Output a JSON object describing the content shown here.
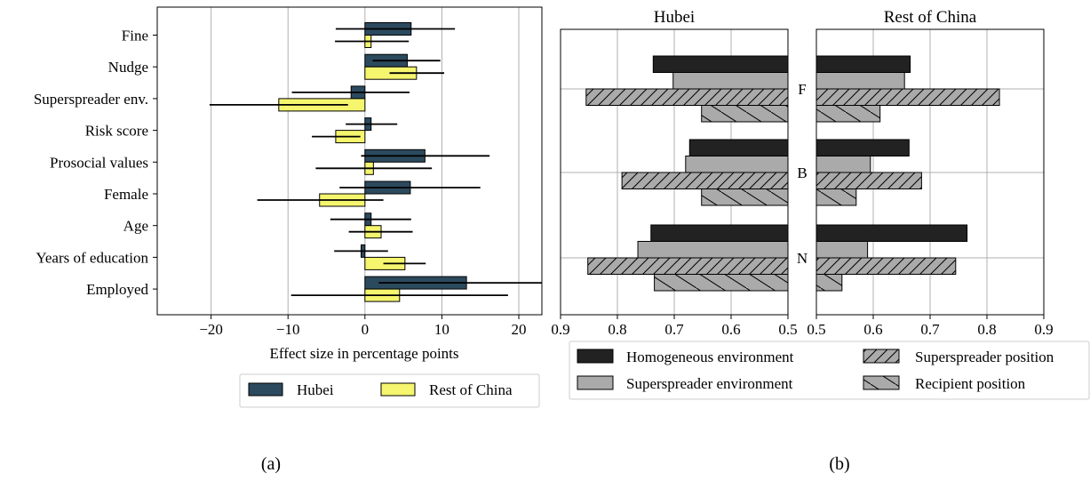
{
  "colors": {
    "hubei": "#2c4a5e",
    "rest": "#f5f56e",
    "homogeneous": "#222222",
    "spreader_env": "#aaaaaa",
    "position": "#aaaaaa",
    "grid": "#b0b0b0"
  },
  "panel_a": {
    "caption": "(a)",
    "legend": {
      "hubei": "Hubei",
      "rest": "Rest of China"
    }
  },
  "panel_b": {
    "caption": "(b)",
    "legend": {
      "homogeneous": "Homogeneous environment",
      "spreader_env": "Superspreader environment",
      "spreader_pos": "Superspreader position",
      "recipient_pos": "Recipient position"
    }
  },
  "chart_data": [
    {
      "type": "bar",
      "orientation": "horizontal",
      "xlabel": "Effect size in percentage points",
      "xlim": [
        -27,
        23
      ],
      "xticks": [
        "−20",
        "−10",
        "0",
        "10",
        "20"
      ],
      "grid": true,
      "legend_position": "bottom-right",
      "categories": [
        "Fine",
        "Nudge",
        "Superspreader env.",
        "Risk score",
        "Prosocial values",
        "Female",
        "Age",
        "Years of education",
        "Employed"
      ],
      "series": [
        {
          "name": "Hubei",
          "values": [
            6.0,
            5.5,
            -1.8,
            0.8,
            7.8,
            5.9,
            0.8,
            -0.5,
            13.2
          ],
          "ci_low": [
            -3.8,
            1.0,
            -9.5,
            -2.5,
            -0.5,
            -3.3,
            -4.5,
            -4.0,
            1.8
          ],
          "ci_high": [
            11.7,
            9.8,
            5.8,
            4.2,
            16.2,
            15.0,
            6.0,
            3.0,
            24.5
          ]
        },
        {
          "name": "Rest of China",
          "values": [
            0.8,
            6.7,
            -11.2,
            -3.8,
            1.1,
            -5.9,
            2.1,
            5.2,
            4.5
          ],
          "ci_low": [
            -3.9,
            3.2,
            -20.2,
            -6.9,
            -6.4,
            -14.0,
            -2.1,
            2.4,
            -9.6
          ],
          "ci_high": [
            5.7,
            10.3,
            -2.2,
            -0.6,
            8.7,
            2.4,
            6.2,
            7.9,
            18.6
          ]
        }
      ]
    },
    {
      "type": "bar",
      "orientation": "horizontal",
      "title": "Hubei",
      "xlim": [
        0.9,
        0.5
      ],
      "xticks": [
        "0.9",
        "0.8",
        "0.7",
        "0.6",
        "0.5"
      ],
      "grid": true,
      "categories": [
        "F",
        "B",
        "N"
      ],
      "series": [
        {
          "name": "Homogeneous environment",
          "values": [
            0.737,
            0.673,
            0.741
          ]
        },
        {
          "name": "Superspreader environment",
          "values": [
            0.702,
            0.68,
            0.764
          ]
        },
        {
          "name": "Superspreader position",
          "values": [
            0.855,
            0.792,
            0.852
          ]
        },
        {
          "name": "Recipient position",
          "values": [
            0.652,
            0.652,
            0.735
          ]
        }
      ]
    },
    {
      "type": "bar",
      "orientation": "horizontal",
      "title": "Rest of China",
      "xlim": [
        0.5,
        0.9
      ],
      "xticks": [
        "0.5",
        "0.6",
        "0.7",
        "0.8",
        "0.9"
      ],
      "grid": true,
      "categories": [
        "F",
        "B",
        "N"
      ],
      "series": [
        {
          "name": "Homogeneous environment",
          "values": [
            0.665,
            0.663,
            0.765
          ]
        },
        {
          "name": "Superspreader environment",
          "values": [
            0.655,
            0.595,
            0.59
          ]
        },
        {
          "name": "Superspreader position",
          "values": [
            0.822,
            0.685,
            0.745
          ]
        },
        {
          "name": "Recipient position",
          "values": [
            0.612,
            0.57,
            0.545
          ]
        }
      ]
    }
  ]
}
